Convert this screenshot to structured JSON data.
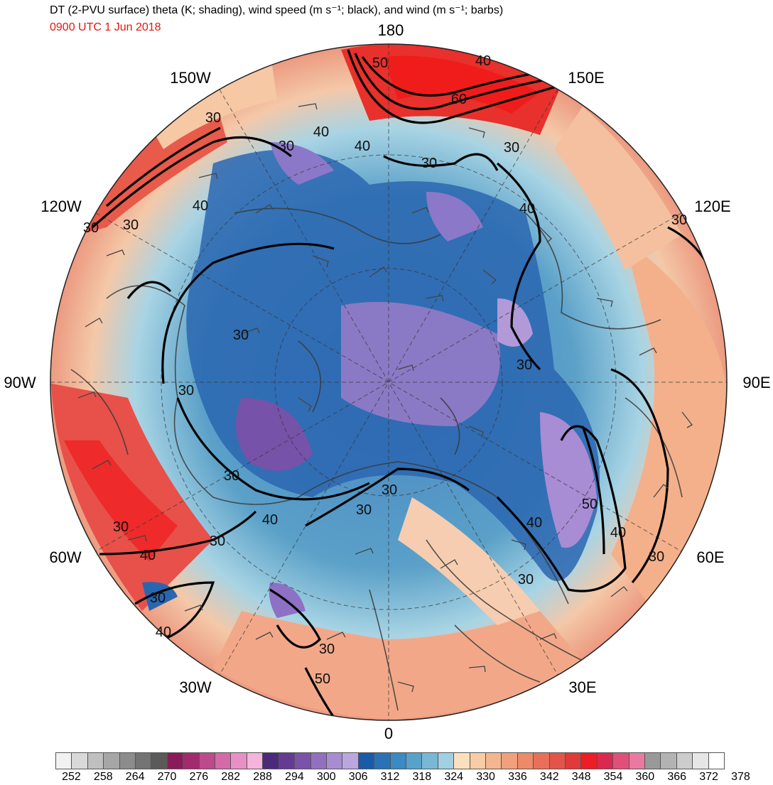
{
  "header": {
    "title": "DT (2-PVU surface) theta (K; shading), wind speed (m s⁻¹; black), and wind (m s⁻¹; barbs)",
    "valid_time": "0900 UTC 1 Jun 2018"
  },
  "map": {
    "projection": "north polar stereographic",
    "longitude_labels": [
      "180",
      "150E",
      "120E",
      "90E",
      "60E",
      "30E",
      "0",
      "30W",
      "60W",
      "90W",
      "120W",
      "150W"
    ],
    "isotach_labels": [
      "50",
      "40",
      "60",
      "30",
      "40",
      "30",
      "40",
      "30",
      "30",
      "40",
      "30",
      "40",
      "30",
      "30",
      "30",
      "30",
      "30",
      "30",
      "30",
      "30",
      "40",
      "30",
      "50",
      "40",
      "30",
      "30",
      "40",
      "30",
      "40",
      "30",
      "50",
      "40",
      "30"
    ]
  },
  "colorbar": {
    "tick_labels": [
      "252",
      "258",
      "264",
      "270",
      "276",
      "282",
      "288",
      "294",
      "300",
      "306",
      "312",
      "318",
      "324",
      "330",
      "336",
      "342",
      "348",
      "354",
      "360",
      "366",
      "372",
      "378"
    ],
    "colors": [
      "#f2f2f2",
      "#d9d9d9",
      "#bfbfbf",
      "#a6a6a6",
      "#8c8c8c",
      "#737373",
      "#5a5a5a",
      "#8b1a5a",
      "#a42a6e",
      "#bd4a8a",
      "#d46aa6",
      "#e890c6",
      "#f4b4dc",
      "#4a2a7a",
      "#643a94",
      "#7a52aa",
      "#9270c0",
      "#a78cd2",
      "#bba6e0",
      "#1a5aa8",
      "#2a72b8",
      "#3a8ac4",
      "#56a2ca",
      "#78b8d6",
      "#a0d0e2",
      "#fbe0c0",
      "#f8cca4",
      "#f4b690",
      "#f0a07c",
      "#ec8a6a",
      "#e8705a",
      "#e4544a",
      "#e03a3a",
      "#ee1c24",
      "#dc2850",
      "#e0507a",
      "#e87aa0",
      "#999999",
      "#b3b3b3",
      "#cccccc",
      "#e6e6e6",
      "#ffffff"
    ]
  }
}
